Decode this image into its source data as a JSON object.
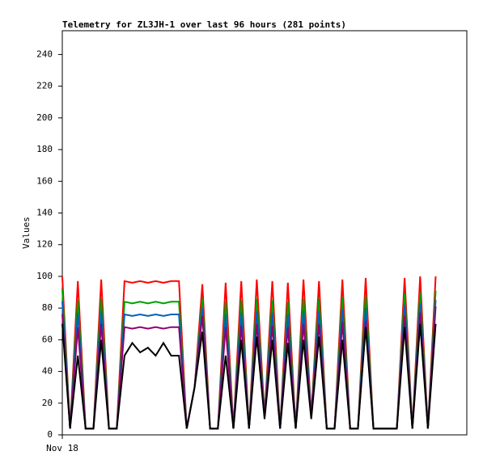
{
  "chart_data": {
    "type": "line",
    "title": "Telemetry for ZL3JH-1 over last 96 hours (281 points)",
    "y_label": "Values",
    "x": [
      0,
      2,
      4,
      6,
      8,
      10,
      12,
      14,
      16,
      18,
      20,
      22,
      24,
      26,
      28,
      30,
      32,
      34,
      36,
      38,
      40,
      42,
      44,
      46,
      48,
      50,
      52,
      54,
      56,
      58,
      60,
      62,
      64,
      66,
      68,
      70,
      72,
      74,
      76,
      78,
      80,
      82,
      84,
      86,
      88,
      90,
      92,
      94,
      96
    ],
    "xlim": [
      0,
      104
    ],
    "xticks": [
      {
        "value": 0,
        "label": "Nov 18"
      }
    ],
    "ylim": [
      0,
      255
    ],
    "yticks": [
      0,
      20,
      40,
      60,
      80,
      100,
      120,
      140,
      160,
      180,
      200,
      220,
      240
    ],
    "series": [
      {
        "color": "#ff0000",
        "values": [
          100,
          4,
          97,
          4,
          4,
          98,
          4,
          4,
          97,
          96,
          97,
          96,
          97,
          96,
          97,
          97,
          4,
          30,
          95,
          4,
          4,
          96,
          4,
          97,
          4,
          98,
          12,
          97,
          4,
          96,
          4,
          98,
          12,
          97,
          4,
          4,
          98,
          4,
          4,
          99,
          4,
          4,
          4,
          4,
          99,
          4,
          100,
          4,
          100
        ]
      },
      {
        "color": "#00a000",
        "values": [
          92,
          4,
          85,
          4,
          4,
          86,
          4,
          4,
          84,
          83,
          84,
          83,
          84,
          83,
          84,
          84,
          4,
          30,
          86,
          4,
          4,
          84,
          4,
          85,
          4,
          86,
          12,
          85,
          4,
          84,
          4,
          86,
          12,
          86,
          4,
          4,
          87,
          4,
          4,
          88,
          4,
          4,
          4,
          4,
          89,
          4,
          90,
          4,
          91
        ]
      },
      {
        "color": "#0060c0",
        "values": [
          84,
          4,
          77,
          4,
          4,
          78,
          4,
          4,
          76,
          75,
          76,
          75,
          76,
          75,
          76,
          76,
          4,
          30,
          80,
          4,
          4,
          76,
          4,
          77,
          4,
          78,
          12,
          77,
          4,
          76,
          4,
          78,
          12,
          78,
          4,
          4,
          79,
          4,
          4,
          80,
          4,
          4,
          4,
          4,
          82,
          4,
          83,
          4,
          85
        ]
      },
      {
        "color": "#900070",
        "values": [
          76,
          4,
          68,
          4,
          4,
          70,
          4,
          4,
          68,
          67,
          68,
          67,
          68,
          67,
          68,
          68,
          4,
          30,
          75,
          4,
          4,
          68,
          4,
          69,
          4,
          70,
          12,
          69,
          4,
          68,
          4,
          70,
          12,
          70,
          4,
          4,
          71,
          4,
          4,
          72,
          4,
          4,
          4,
          4,
          75,
          4,
          77,
          4,
          81
        ]
      },
      {
        "color": "#000000",
        "values": [
          70,
          4,
          50,
          4,
          4,
          60,
          4,
          4,
          50,
          58,
          52,
          55,
          50,
          58,
          50,
          50,
          4,
          30,
          65,
          4,
          4,
          50,
          4,
          60,
          4,
          62,
          10,
          60,
          4,
          58,
          4,
          60,
          10,
          62,
          4,
          4,
          60,
          4,
          4,
          68,
          4,
          4,
          4,
          4,
          68,
          4,
          70,
          4,
          70
        ]
      }
    ]
  }
}
